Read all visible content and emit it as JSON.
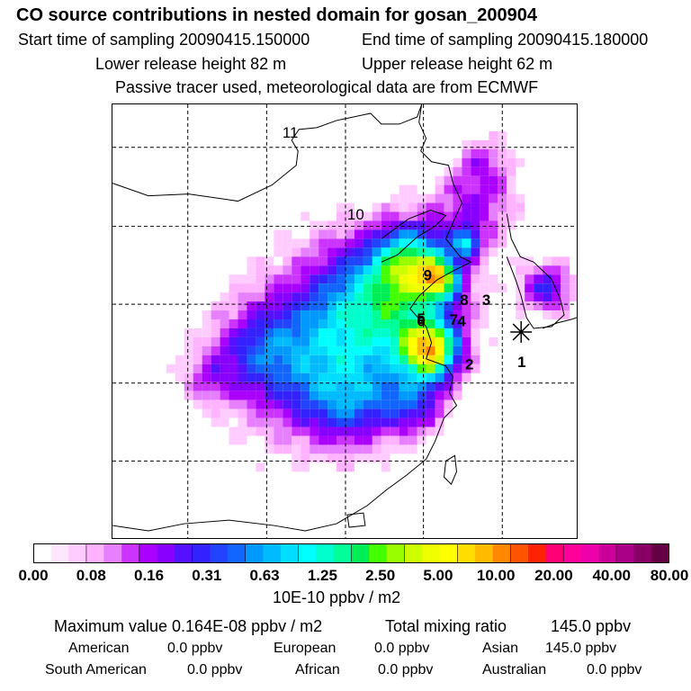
{
  "header": {
    "title": "CO  source contributions in nested domain for gosan_200904",
    "start_label": "Start time of sampling 20090415.150000",
    "end_label": "End time of sampling 20090415.180000",
    "lower_label": "Lower release height   82 m",
    "upper_label": "Upper release height   62 m",
    "note": "Passive tracer used, meteorological data are from ECMWF"
  },
  "map": {
    "release_labels": [
      {
        "id": "1",
        "lon": 131.3,
        "lat": 33.8
      },
      {
        "id": "2",
        "lon": 127.3,
        "lat": 33.6
      },
      {
        "id": "3",
        "lon": 128.6,
        "lat": 38.8
      },
      {
        "id": "4",
        "lon": 126.7,
        "lat": 37.1
      },
      {
        "id": "5",
        "lon": 123.6,
        "lat": 37.3
      },
      {
        "id": "6",
        "lon": 123.6,
        "lat": 37.1
      },
      {
        "id": "7",
        "lon": 126.1,
        "lat": 37.2
      },
      {
        "id": "8",
        "lon": 126.9,
        "lat": 38.8
      },
      {
        "id": "9",
        "lon": 124.1,
        "lat": 40.8
      },
      {
        "id": "10",
        "lon": 118.6,
        "lat": 45.7
      },
      {
        "id": "11",
        "lon": 113.6,
        "lat": 52.3
      }
    ],
    "receptor_marker": "star-icon",
    "accent_colors": [
      "#ffffff",
      "#cc00ff",
      "#3300ff",
      "#00ffff",
      "#ffff00",
      "#ff0000",
      "#660044"
    ]
  },
  "colorbar": {
    "colors": [
      "#ffffff",
      "#ffe6ff",
      "#ffccff",
      "#ffb3ff",
      "#e680ff",
      "#cc33ff",
      "#aa00ff",
      "#8800ff",
      "#5511ff",
      "#3322ff",
      "#2244ff",
      "#1166ff",
      "#0099ff",
      "#00bbff",
      "#00ddff",
      "#00ffff",
      "#00ffcc",
      "#00ff99",
      "#00ee55",
      "#44ff00",
      "#99ff00",
      "#ccff00",
      "#eeff00",
      "#ffff00",
      "#ffdd00",
      "#ffbb00",
      "#ff8800",
      "#ff5500",
      "#ff2200",
      "#ff0077",
      "#ff0099",
      "#ee00aa",
      "#cc0099",
      "#aa0088",
      "#880066",
      "#660044"
    ],
    "tick_labels": [
      "0.00",
      "0.08",
      "0.16",
      "0.31",
      "0.63",
      "1.25",
      "2.50",
      "5.00",
      "10.00",
      "20.00",
      "40.00",
      "80.00"
    ],
    "unit": "10E-10 ppbv / m2"
  },
  "summary": {
    "max_value": "Maximum value  0.164E-08 ppbv / m2",
    "total_label": "Total mixing ratio",
    "total_value": "145.0 ppbv",
    "american_label": "American",
    "american_value": "0.0 ppbv",
    "european_label": "European",
    "european_value": "0.0 ppbv",
    "asian_label": "Asian",
    "asian_value": "145.0 ppbv",
    "south_american_label": "South American",
    "south_american_value": "0.0 ppbv",
    "african_label": "African",
    "african_value": "0.0 ppbv",
    "australian_label": "Australian",
    "australian_value": "0.0 ppbv"
  }
}
